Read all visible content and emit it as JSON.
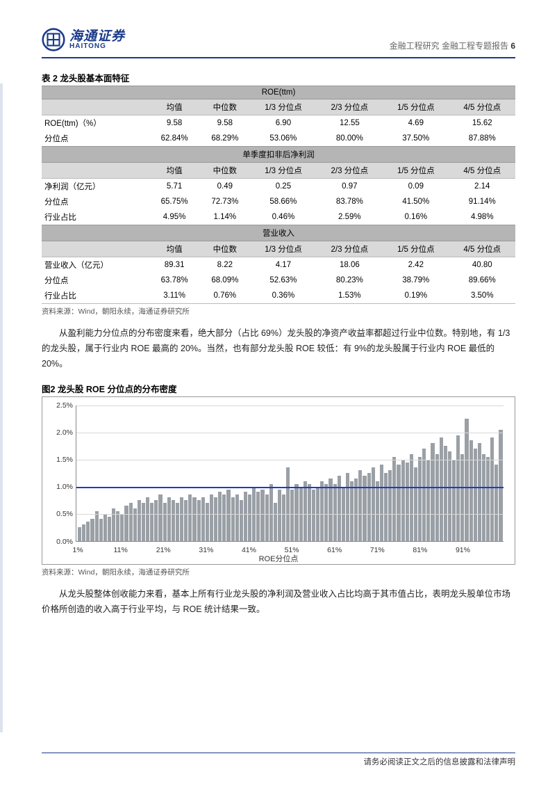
{
  "header": {
    "logo_cn": "海通证券",
    "logo_en": "HAITONG",
    "breadcrumb": "金融工程研究 金融工程专题报告",
    "page_num": "6"
  },
  "table": {
    "title": "表 2 龙头股基本面特征",
    "columns": [
      "",
      "均值",
      "中位数",
      "1/3 分位点",
      "2/3 分位点",
      "1/5 分位点",
      "4/5 分位点"
    ],
    "sections": [
      {
        "band": "ROE(ttm)",
        "rows": [
          {
            "label": "ROE(ttm)（%）",
            "cells": [
              "9.58",
              "9.58",
              "6.90",
              "12.55",
              "4.69",
              "15.62"
            ]
          },
          {
            "label": "分位点",
            "cells": [
              "62.84%",
              "68.29%",
              "53.06%",
              "80.00%",
              "37.50%",
              "87.88%"
            ]
          }
        ]
      },
      {
        "band": "单季度扣非后净利润",
        "rows": [
          {
            "label": "净利润（亿元）",
            "cells": [
              "5.71",
              "0.49",
              "0.25",
              "0.97",
              "0.09",
              "2.14"
            ]
          },
          {
            "label": "分位点",
            "cells": [
              "65.75%",
              "72.73%",
              "58.66%",
              "83.78%",
              "41.50%",
              "91.14%"
            ]
          },
          {
            "label": "行业占比",
            "cells": [
              "4.95%",
              "1.14%",
              "0.46%",
              "2.59%",
              "0.16%",
              "4.98%"
            ]
          }
        ]
      },
      {
        "band": "营业收入",
        "rows": [
          {
            "label": "营业收入（亿元）",
            "cells": [
              "89.31",
              "8.22",
              "4.17",
              "18.06",
              "2.42",
              "40.80"
            ]
          },
          {
            "label": "分位点",
            "cells": [
              "63.78%",
              "68.09%",
              "52.63%",
              "80.23%",
              "38.79%",
              "89.66%"
            ]
          },
          {
            "label": "行业占比",
            "cells": [
              "3.11%",
              "0.76%",
              "0.36%",
              "1.53%",
              "0.19%",
              "3.50%"
            ]
          }
        ]
      }
    ],
    "source": "资料来源：Wind，朝阳永续，海通证券研究所"
  },
  "para1": "从盈利能力分位点的分布密度来看，绝大部分（占比 69%）龙头股的净资产收益率都超过行业中位数。特别地，有 1/3 的龙头股，属于行业内 ROE 最高的 20%。当然，也有部分龙头股 ROE 较低：有 9%的龙头股属于行业内 ROE 最低的 20%。",
  "figure": {
    "title": "图2 龙头股 ROE 分位点的分布密度",
    "type": "bar",
    "ylabel_ticks": [
      "0.0%",
      "0.5%",
      "1.0%",
      "1.5%",
      "2.0%",
      "2.5%"
    ],
    "ylim": [
      0,
      2.5
    ],
    "ref_line_y": 1.0,
    "xlabel": "ROE分位点",
    "x_ticks": [
      "1%",
      "11%",
      "21%",
      "31%",
      "41%",
      "51%",
      "61%",
      "71%",
      "81%",
      "91%"
    ],
    "bar_color": "#9aa0a6",
    "ref_line_color": "#1a3ad0",
    "grid_color": "#d8d8d8",
    "background": "#ffffff",
    "values": [
      0.25,
      0.3,
      0.35,
      0.4,
      0.55,
      0.4,
      0.5,
      0.45,
      0.6,
      0.55,
      0.5,
      0.65,
      0.7,
      0.6,
      0.75,
      0.7,
      0.8,
      0.7,
      0.75,
      0.85,
      0.7,
      0.8,
      0.75,
      0.7,
      0.8,
      0.75,
      0.85,
      0.8,
      0.75,
      0.8,
      0.7,
      0.85,
      0.8,
      0.9,
      0.85,
      0.95,
      0.8,
      0.85,
      0.75,
      0.9,
      0.85,
      1.0,
      0.9,
      0.95,
      0.85,
      1.05,
      0.7,
      0.95,
      0.85,
      1.35,
      0.95,
      1.05,
      1.0,
      1.1,
      1.05,
      0.95,
      1.0,
      1.1,
      1.05,
      1.15,
      1.05,
      1.2,
      1.0,
      1.25,
      1.1,
      1.15,
      1.3,
      1.2,
      1.25,
      1.35,
      1.1,
      1.4,
      1.25,
      1.3,
      1.55,
      1.4,
      1.5,
      1.45,
      1.6,
      1.35,
      1.55,
      1.7,
      1.5,
      1.8,
      1.6,
      1.9,
      1.75,
      1.65,
      1.5,
      1.95,
      1.6,
      2.25,
      1.85,
      1.7,
      1.8,
      1.6,
      1.55,
      1.9,
      1.4,
      2.05
    ],
    "source": "资料来源：Wind，朝阳永续，海通证券研究所"
  },
  "para2": "从龙头股整体创收能力来看，基本上所有行业龙头股的净利润及营业收入占比均高于其市值占比，表明龙头股单位市场价格所创造的收入高于行业平均，与 ROE 统计结果一致。",
  "footer": "请务必阅读正文之后的信息披露和法律声明"
}
